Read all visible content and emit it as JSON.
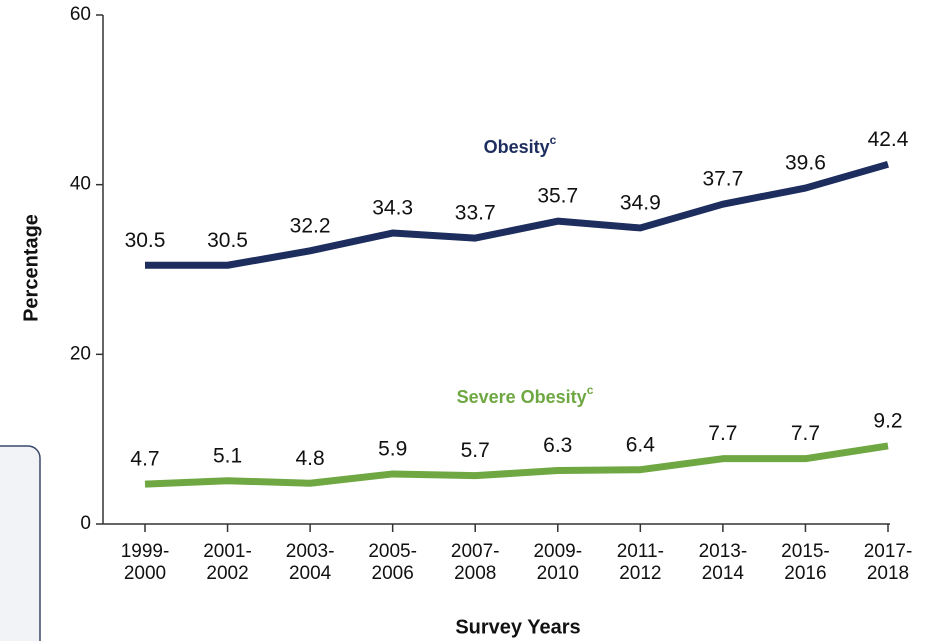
{
  "chart_data": {
    "type": "line",
    "x_label": "Survey Years",
    "y_label": "Percentage",
    "categories": [
      "1999-2000",
      "2001-2002",
      "2003-2004",
      "2005-2006",
      "2007-2008",
      "2009-2010",
      "2011-2012",
      "2013-2014",
      "2015-2016",
      "2017-2018"
    ],
    "series": [
      {
        "name": "Obesity",
        "name_superscript": "c",
        "color": "#1c2d5e",
        "values": [
          30.5,
          30.5,
          32.2,
          34.3,
          33.7,
          35.7,
          34.9,
          37.7,
          39.6,
          42.4
        ]
      },
      {
        "name": "Severe Obesity",
        "name_superscript": "c",
        "color": "#6fa843",
        "values": [
          4.7,
          5.1,
          4.8,
          5.9,
          5.7,
          6.3,
          6.4,
          7.7,
          7.7,
          9.2
        ]
      }
    ],
    "ylim": [
      0,
      60
    ],
    "yticks": [
      0,
      20,
      40,
      60
    ],
    "grid": false
  }
}
